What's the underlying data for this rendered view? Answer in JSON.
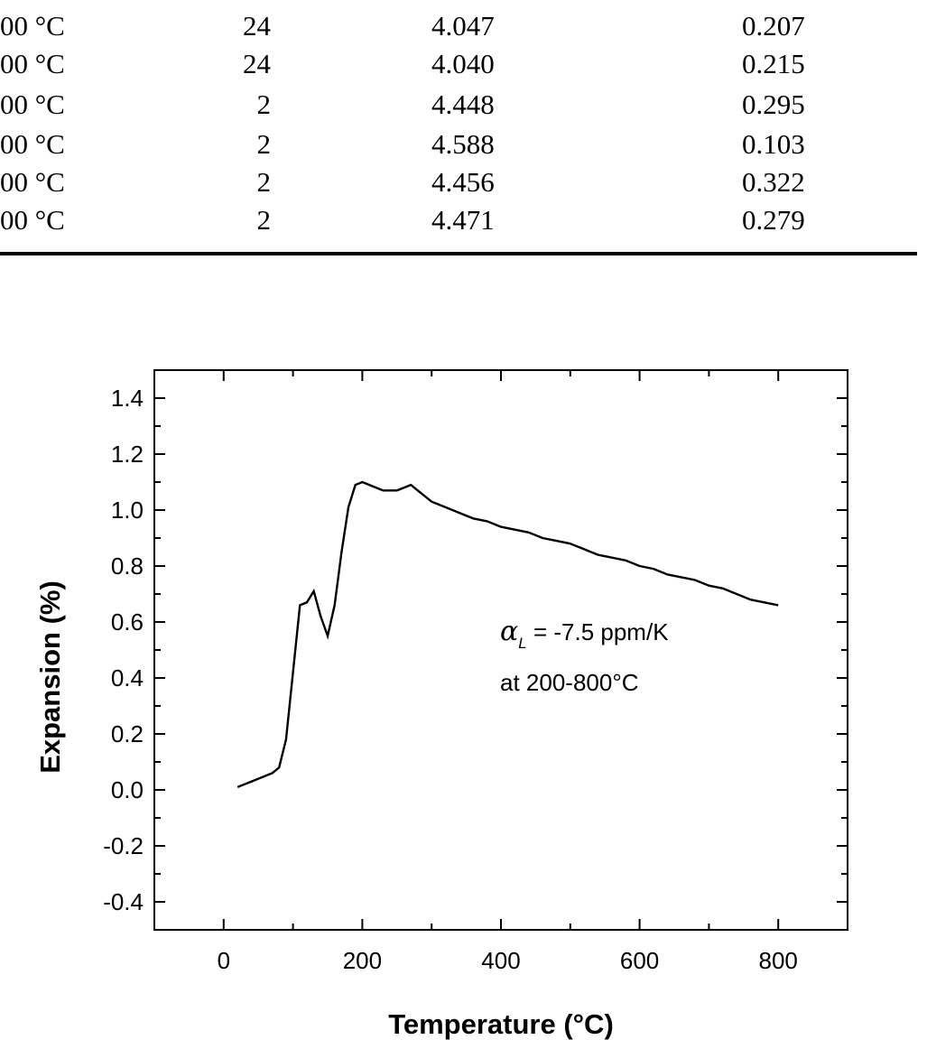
{
  "table": {
    "rows": [
      {
        "c0": "00 °C",
        "c1": "24",
        "c2": "4.047",
        "c3": "0.207"
      },
      {
        "c0": "00 °C",
        "c1": "24",
        "c2": "4.040",
        "c3": "0.215"
      },
      {
        "c0": "00 °C",
        "c1": "2",
        "c2": "4.448",
        "c3": "0.295"
      },
      {
        "c0": "00 °C",
        "c1": "2",
        "c2": "4.588",
        "c3": "0.103"
      },
      {
        "c0": "00 °C",
        "c1": "2",
        "c2": "4.456",
        "c3": "0.322"
      },
      {
        "c0": "00 °C",
        "c1": "2",
        "c2": "4.471",
        "c3": "0.279"
      }
    ]
  },
  "chart_data": {
    "type": "line",
    "xlabel": "Temperature (°C)",
    "ylabel": "Expansion (%)",
    "xlim": [
      -100,
      900
    ],
    "ylim": [
      -0.5,
      1.5
    ],
    "x_ticks": [
      0,
      200,
      400,
      600,
      800
    ],
    "y_ticks": [
      -0.4,
      -0.2,
      0.0,
      0.2,
      0.4,
      0.6,
      0.8,
      1.0,
      1.2,
      1.4
    ],
    "x_tick_labels": [
      "0",
      "200",
      "400",
      "600",
      "800"
    ],
    "y_tick_labels": [
      "-0.4",
      "-0.2",
      "0.0",
      "0.2",
      "0.4",
      "0.6",
      "0.8",
      "1.0",
      "1.2",
      "1.4"
    ],
    "grid": false,
    "annotation": {
      "line1_symbol": "α",
      "line1_subscript": "L",
      "line1_text": " = -7.5 ppm/K",
      "line2_text": "at 200-800°C"
    },
    "series": [
      {
        "x": [
          20,
          30,
          40,
          50,
          60,
          70,
          80,
          90,
          100,
          110,
          120,
          130,
          140,
          150,
          160,
          170,
          180,
          190,
          200,
          210,
          220,
          230,
          240,
          250,
          260,
          270,
          280,
          290,
          300,
          320,
          340,
          360,
          380,
          400,
          420,
          440,
          460,
          480,
          500,
          520,
          540,
          560,
          580,
          600,
          620,
          640,
          660,
          680,
          700,
          720,
          740,
          760,
          780,
          800
        ],
        "y": [
          0.01,
          0.02,
          0.03,
          0.04,
          0.05,
          0.06,
          0.08,
          0.18,
          0.42,
          0.66,
          0.67,
          0.71,
          0.62,
          0.55,
          0.66,
          0.85,
          1.01,
          1.09,
          1.1,
          1.09,
          1.08,
          1.07,
          1.07,
          1.07,
          1.08,
          1.09,
          1.07,
          1.05,
          1.03,
          1.01,
          0.99,
          0.97,
          0.96,
          0.94,
          0.93,
          0.92,
          0.9,
          0.89,
          0.88,
          0.86,
          0.84,
          0.83,
          0.82,
          0.8,
          0.79,
          0.77,
          0.76,
          0.75,
          0.73,
          0.72,
          0.7,
          0.68,
          0.67,
          0.66
        ]
      }
    ]
  }
}
